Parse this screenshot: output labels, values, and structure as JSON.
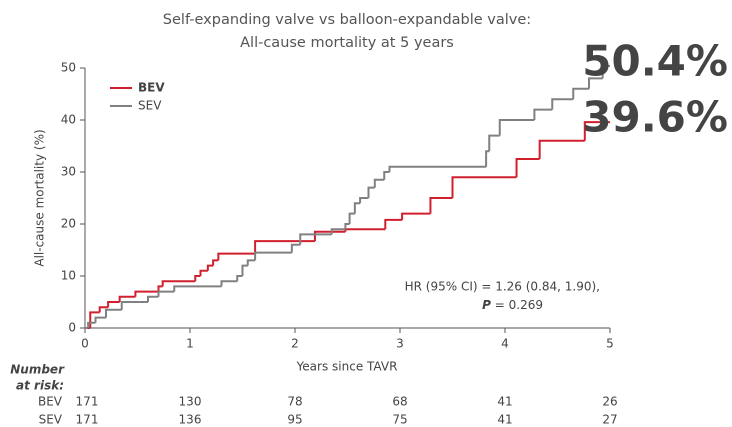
{
  "chart_data": {
    "type": "step",
    "title": [
      "Self-expanding valve vs balloon-expandable valve:",
      "All-cause mortality at 5 years"
    ],
    "x_label": "Years since TAVR",
    "y_label": "All-cause mortality (%)",
    "xlim": [
      0,
      5
    ],
    "xticks": [
      0,
      1,
      2,
      3,
      4,
      5
    ],
    "ylim": [
      0,
      50
    ],
    "yticks": [
      0,
      10,
      20,
      30,
      40,
      50
    ],
    "legend": "upper left",
    "series": [
      {
        "name": "BEV",
        "color": "#d0202e",
        "end_label": "39.6%",
        "x": [
          0,
          0.05,
          0.14,
          0.22,
          0.33,
          0.48,
          0.7,
          0.74,
          1.05,
          1.1,
          1.17,
          1.22,
          1.27,
          1.62,
          2.19,
          2.48,
          2.86,
          3.02,
          3.29,
          3.5,
          4.11,
          4.33,
          4.76,
          5
        ],
        "values": [
          0,
          3,
          4,
          5,
          6,
          7,
          8,
          9,
          10,
          11,
          12,
          13,
          14.3,
          16.7,
          18.5,
          19,
          20.8,
          22,
          25,
          29,
          32.5,
          36,
          39.6,
          39.6
        ]
      },
      {
        "name": "SEV",
        "color": "#808080",
        "end_label": "50.4%",
        "x": [
          0,
          0.03,
          0.1,
          0.2,
          0.35,
          0.6,
          0.7,
          0.85,
          1.3,
          1.45,
          1.5,
          1.55,
          1.62,
          1.97,
          2.05,
          2.35,
          2.48,
          2.52,
          2.57,
          2.62,
          2.7,
          2.76,
          2.85,
          2.9,
          3.82,
          3.85,
          3.95,
          4.28,
          4.45,
          4.65,
          4.8,
          4.93,
          5
        ],
        "values": [
          0,
          1,
          2,
          3.5,
          5,
          6,
          7,
          8,
          9,
          10,
          12,
          13,
          14.5,
          16,
          18,
          19,
          20,
          22,
          24,
          25,
          27,
          28.5,
          30,
          31,
          34,
          37,
          40,
          42,
          44,
          46,
          48,
          50.4,
          50.4
        ]
      }
    ],
    "annotation": {
      "line1": "HR (95% CI) = 1.26 (0.84, 1.90),",
      "p_symbol": "P",
      "p_text": " = 0.269"
    },
    "risk_table": {
      "title": [
        "Number",
        "at risk:"
      ],
      "rows": [
        {
          "name": "BEV",
          "counts": [
            171,
            130,
            78,
            68,
            41,
            26
          ]
        },
        {
          "name": "SEV",
          "counts": [
            171,
            136,
            95,
            75,
            41,
            27
          ]
        }
      ]
    }
  }
}
